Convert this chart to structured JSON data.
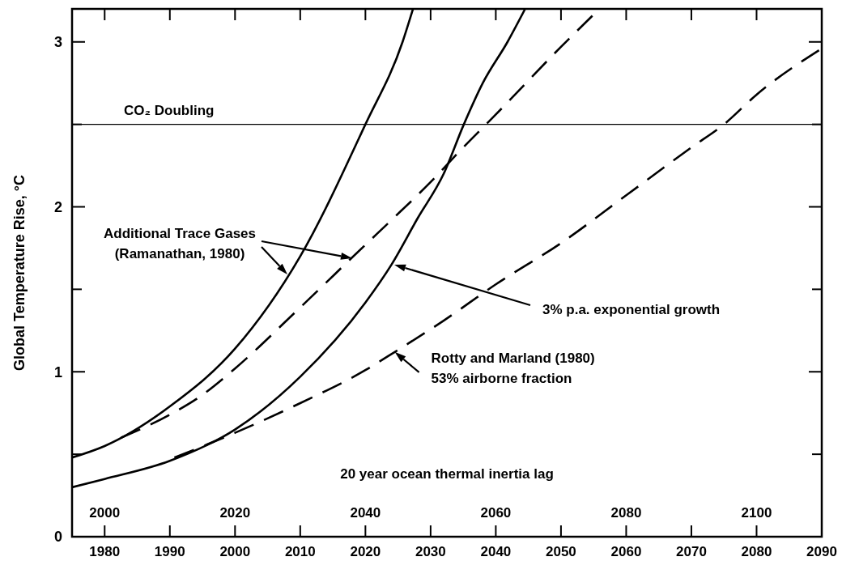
{
  "chart_data": {
    "type": "line",
    "ylabel": "Global Temperature Rise, °C",
    "x2label": "20 year ocean thermal inertia lag",
    "xlim": [
      1975,
      2090
    ],
    "xticks": [
      1980,
      1990,
      2000,
      2010,
      2020,
      2030,
      2040,
      2050,
      2060,
      2070,
      2080,
      2090
    ],
    "x2lim": [
      1995,
      2110
    ],
    "x2ticks": [
      2000,
      2020,
      2040,
      2060,
      2080,
      2100
    ],
    "ylim": [
      0,
      3.2
    ],
    "yticks": [
      0,
      {
        "value": 0.5,
        "label": null
      },
      1,
      {
        "value": 1.5,
        "label": null
      },
      2,
      {
        "value": 2.5,
        "label": null
      },
      3
    ],
    "grid": false,
    "marker": "none",
    "ref_lines": [
      {
        "axis": "y",
        "value": 2.5,
        "label": "CO₂ Doubling",
        "color": "#000000"
      }
    ],
    "annotations": [
      "Additional Trace Gases\n(Ramanathan, 1980)",
      "3% p.a. exponential growth",
      {
        "text": "Rotty and Marland (1980)\n53% airborne fraction",
        "x": 2024.5,
        "y": 1.12
      }
    ],
    "series": [
      {
        "color": "#000000",
        "line_style": "solid",
        "x": [
          1975,
          1980,
          1990,
          2000,
          2010,
          2020,
          2025.7,
          2027.3
        ],
        "values": [
          0.48,
          0.55,
          0.79,
          1.14,
          1.7,
          2.5,
          3.0,
          3.2
        ]
      },
      {
        "color": "#000000",
        "line_style": "solid",
        "x": [
          1975,
          1980,
          1990,
          2000,
          2010,
          2020,
          2024,
          2028,
          2032,
          2035.1,
          2038,
          2041.8,
          2044.5
        ],
        "values": [
          0.3,
          0.35,
          0.46,
          0.65,
          0.97,
          1.42,
          1.65,
          1.93,
          2.2,
          2.5,
          2.75,
          3.0,
          3.2
        ]
      },
      {
        "color": "#000000",
        "line_style": "dashed",
        "x": [
          1982.5,
          1990,
          1995,
          2000,
          2010,
          2020,
          2024,
          2030,
          2035,
          2038.5,
          2040,
          2050,
          2055.9
        ],
        "values": [
          0.6,
          0.74,
          0.86,
          1.02,
          1.39,
          1.77,
          1.92,
          2.15,
          2.36,
          2.5,
          2.56,
          2.97,
          3.2
        ]
      },
      {
        "color": "#000000",
        "line_style": "dashed",
        "x": [
          1990.7,
          2000,
          2010,
          2020,
          2024.5,
          2032,
          2040,
          2050,
          2060,
          2070,
          2075,
          2080,
          2090
        ],
        "values": [
          0.48,
          0.63,
          0.81,
          1.01,
          1.12,
          1.31,
          1.53,
          1.78,
          2.07,
          2.36,
          2.5,
          2.68,
          2.96
        ]
      }
    ]
  }
}
